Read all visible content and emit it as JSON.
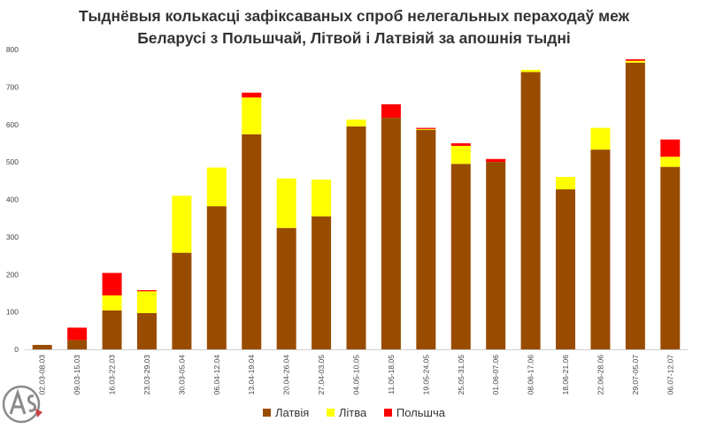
{
  "chart_data": {
    "type": "bar",
    "stacked": true,
    "title_line1": "Тыднёвыя колькасці зафіксаваных спроб нелегальных пераходаў меж",
    "title_line2": "Беларусі з Польшчай, Літвой і Латвіяй за апошнія тыдні",
    "categories": [
      "02.03-08.03",
      "09.03-15.03",
      "16.03-22.03",
      "23.03-29.03",
      "30.03-05.04",
      "06.04-12.04",
      "13.04-19.04",
      "20.04-26.04",
      "27.04-03.05",
      "04.05-10.05",
      "11.05-18.05",
      "19.05-24.05",
      "25.05-31.05",
      "01.06-07.06",
      "08.06-17.06",
      "18.06-21.06",
      "22.06-28.06",
      "29.07-05.07",
      "06.07-12.07"
    ],
    "series": [
      {
        "name": "Латвія",
        "color": "#994c00",
        "values": [
          12,
          25,
          104,
          97,
          258,
          382,
          574,
          324,
          355,
          595,
          618,
          586,
          495,
          500,
          740,
          427,
          533,
          765,
          487
        ]
      },
      {
        "name": "Літва",
        "color": "#ffff00",
        "values": [
          0,
          0,
          40,
          58,
          152,
          103,
          98,
          132,
          98,
          18,
          0,
          2,
          48,
          0,
          6,
          33,
          58,
          5,
          27
        ]
      },
      {
        "name": "Польшча",
        "color": "#ff0000",
        "values": [
          0,
          33,
          60,
          3,
          0,
          0,
          13,
          0,
          0,
          0,
          36,
          3,
          7,
          8,
          0,
          0,
          0,
          4,
          46
        ]
      }
    ],
    "ylim": [
      0,
      800
    ],
    "yticks": [
      0,
      100,
      200,
      300,
      400,
      500,
      600,
      700,
      800
    ],
    "xlabel": "",
    "ylabel": "",
    "grid": false,
    "legend_position": "bottom"
  },
  "logo": {
    "color": "#8a8a8a",
    "accent": "#c94040"
  }
}
